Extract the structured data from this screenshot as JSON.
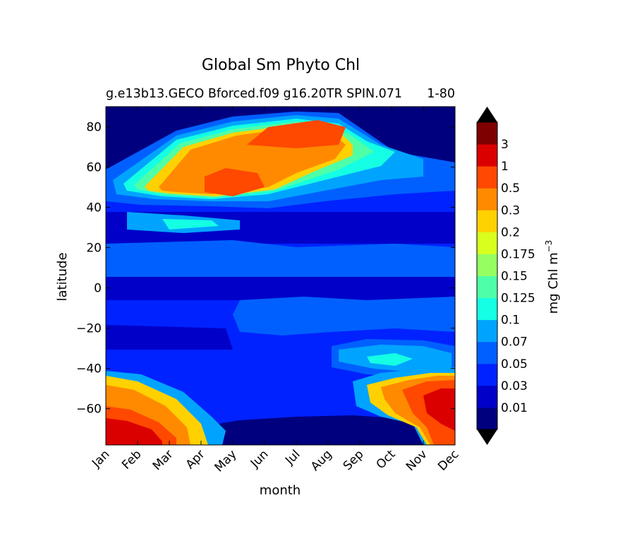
{
  "chart_data": {
    "type": "heatmap",
    "subtype": "filled-contour",
    "title": "Global Sm Phyto Chl",
    "subtitle": "g.e13b13.GECO Bforced.f09 g16.20TR SPIN.071",
    "subtitle_overlap": "1-80",
    "xlabel": "month",
    "ylabel": "latitude",
    "x_categories": [
      "Jan",
      "Feb",
      "Mar",
      "Apr",
      "May",
      "Jun",
      "Jul",
      "Aug",
      "Sep",
      "Oct",
      "Nov",
      "Dec"
    ],
    "x_range": [
      0.5,
      11.5
    ],
    "y_ticks": [
      80,
      60,
      40,
      20,
      0,
      -20,
      -40,
      -60
    ],
    "y_tick_labels": [
      "80",
      "60",
      "40",
      "20",
      "0",
      "−20",
      "−40",
      "−60"
    ],
    "ylim": [
      -78,
      90
    ],
    "colorbar": {
      "label": "mg Chl m",
      "label_superscript": "−3",
      "levels": [
        "0.01",
        "0.03",
        "0.05",
        "0.07",
        "0.1",
        "0.125",
        "0.15",
        "0.175",
        "0.2",
        "0.3",
        "0.5",
        "1",
        "3"
      ],
      "colors": [
        "#00007f",
        "#0000c8",
        "#0022ff",
        "#0060ff",
        "#00a4ff",
        "#14ffe3",
        "#4fffa8",
        "#95ff62",
        "#d8ff1e",
        "#ffd100",
        "#ff8a00",
        "#ff4800",
        "#db0000",
        "#7f0000"
      ],
      "extend": "both"
    },
    "regions": [
      {
        "name": "northern-high-lat-bloom",
        "months": [
          4,
          8
        ],
        "lat": [
          45,
          85
        ],
        "peak": "0.5-1"
      },
      {
        "name": "north-atlantic-spring",
        "months": [
          0,
          4
        ],
        "lat": [
          44,
          60
        ],
        "peak": "0.2-0.5"
      },
      {
        "name": "southern-ocean-summer-nov-dec",
        "months": [
          9,
          11
        ],
        "lat": [
          -78,
          -45
        ],
        "peak": "1-3"
      },
      {
        "name": "southern-ocean-summer-jan-apr",
        "months": [
          0,
          3
        ],
        "lat": [
          -78,
          -45
        ],
        "peak": "1-3"
      },
      {
        "name": "polar-winter-north",
        "lat": [
          80,
          90
        ],
        "value": "<0.01"
      },
      {
        "name": "polar-winter-south",
        "months": [
          4,
          9
        ],
        "lat": [
          -78,
          -62
        ],
        "value": "<0.01"
      }
    ]
  }
}
